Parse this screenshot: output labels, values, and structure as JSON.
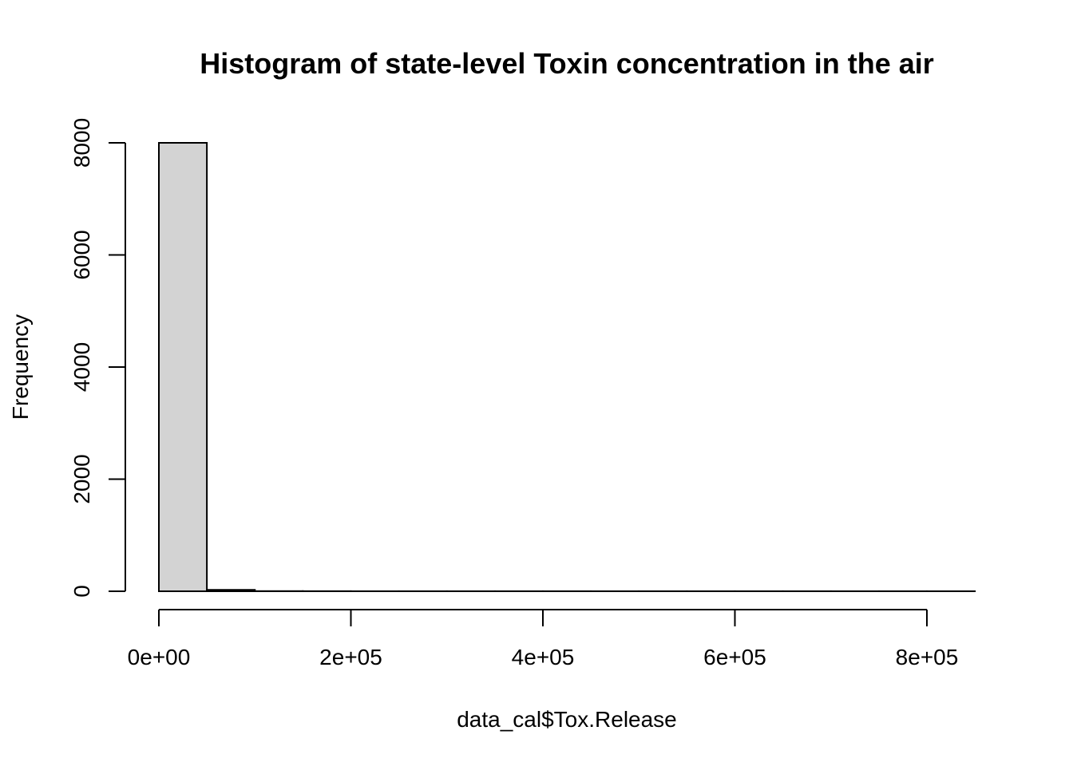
{
  "chart_data": {
    "type": "bar",
    "title": "Histogram of state-level Toxin concentration in the air",
    "xlabel": "data_cal$Tox.Release",
    "ylabel": "Frequency",
    "bins": [
      {
        "start": 0,
        "end": 50000,
        "count": 8000
      },
      {
        "start": 50000,
        "end": 100000,
        "count": 25
      },
      {
        "start": 100000,
        "end": 150000,
        "count": 3
      },
      {
        "start": 150000,
        "end": 200000,
        "count": 2
      },
      {
        "start": 200000,
        "end": 250000,
        "count": 1
      },
      {
        "start": 250000,
        "end": 300000,
        "count": 1
      },
      {
        "start": 300000,
        "end": 350000,
        "count": 1
      },
      {
        "start": 350000,
        "end": 400000,
        "count": 1
      },
      {
        "start": 400000,
        "end": 450000,
        "count": 1
      },
      {
        "start": 450000,
        "end": 500000,
        "count": 1
      },
      {
        "start": 500000,
        "end": 550000,
        "count": 1
      },
      {
        "start": 550000,
        "end": 600000,
        "count": 1
      },
      {
        "start": 600000,
        "end": 650000,
        "count": 1
      },
      {
        "start": 650000,
        "end": 700000,
        "count": 1
      },
      {
        "start": 700000,
        "end": 750000,
        "count": 1
      },
      {
        "start": 750000,
        "end": 800000,
        "count": 1
      },
      {
        "start": 800000,
        "end": 850000,
        "count": 1
      }
    ],
    "xlim": [
      0,
      850000
    ],
    "ylim": [
      0,
      8000
    ],
    "x_ticks": [
      {
        "value": 0,
        "label": "0e+00"
      },
      {
        "value": 200000,
        "label": "2e+05"
      },
      {
        "value": 400000,
        "label": "4e+05"
      },
      {
        "value": 600000,
        "label": "6e+05"
      },
      {
        "value": 800000,
        "label": "8e+05"
      }
    ],
    "y_ticks": [
      {
        "value": 0,
        "label": "0"
      },
      {
        "value": 2000,
        "label": "2000"
      },
      {
        "value": 4000,
        "label": "4000"
      },
      {
        "value": 6000,
        "label": "6000"
      },
      {
        "value": 8000,
        "label": "8000"
      }
    ],
    "bar_fill": "#d3d3d3",
    "bar_stroke": "#000000",
    "grid": false
  }
}
